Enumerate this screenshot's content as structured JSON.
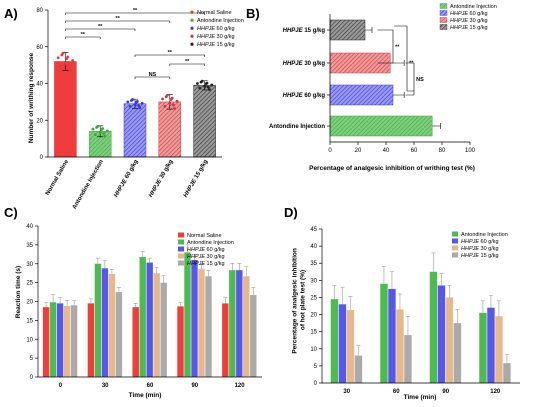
{
  "colors": {
    "normal_saline": "#f03c3c",
    "antondine": "#4dbb4d",
    "hhpje_60": "#5757ee",
    "hhpje_30": "#e6b98a",
    "hhpje_15": "#aaaaaa",
    "a_ns": "#e83a3a",
    "a_ant": "#3ea63e",
    "a_60": "#3a3ad0",
    "a_30": "#c73a45",
    "a_15": "#222222"
  },
  "chart_data": [
    {
      "panel": "A)",
      "type": "bar",
      "ylabel": "Number of writhing response",
      "ylim": [
        0,
        80
      ],
      "yticks": [
        0,
        20,
        40,
        60,
        80
      ],
      "categories": [
        "Normal Saline",
        "Antondine Injection",
        "HHPJE 60 g/kg",
        "HHPJE 30 g/kg",
        "HHPJE 15 g/kg"
      ],
      "values": [
        52,
        14,
        29,
        30,
        39
      ],
      "errors": [
        5,
        3,
        2.5,
        4,
        2.5
      ],
      "legend": [
        "Normal Saline",
        "Antondine Injection",
        "HHPJE 60 g/kg",
        "HHPJE 30 g/kg",
        "HHPJE 15 g/kg"
      ],
      "legend_position": "top-right",
      "significance": [
        "**",
        "**",
        "**",
        "**",
        "NS",
        "**",
        "**"
      ]
    },
    {
      "panel": "B)",
      "type": "bar",
      "orientation": "horizontal",
      "xlabel": "Percentage of analgesic inhibition of writhing test (%)",
      "xlim": [
        0,
        100
      ],
      "xticks": [
        0,
        20,
        40,
        60,
        80,
        100
      ],
      "categories": [
        "HHPJE 15 g/kg",
        "HHPJE 30 g/kg",
        "HHPJE 60 g/kg",
        "Antondine Injection"
      ],
      "values": [
        25,
        43,
        45,
        73
      ],
      "errors": [
        5,
        10,
        8,
        6
      ],
      "legend": [
        "Antondine Injection",
        "HHPJE 60 g/kg",
        "HHPJE 30 g/kg",
        "HHPJE 15 g/kg"
      ],
      "legend_position": "top-right",
      "significance": [
        "**",
        "**",
        "NS"
      ]
    },
    {
      "panel": "C)",
      "type": "bar",
      "xlabel": "Time (min)",
      "ylabel": "Reaction time (s)",
      "ylim": [
        0,
        40
      ],
      "yticks": [
        0,
        5,
        10,
        15,
        20,
        25,
        30,
        35,
        40
      ],
      "categories": [
        "0",
        "30",
        "60",
        "90",
        "120"
      ],
      "series": [
        {
          "name": "Normal Saline",
          "values": [
            18.5,
            19.5,
            18.5,
            18.7,
            19.5
          ],
          "errors": [
            1.2,
            1.2,
            1.0,
            1.0,
            1.5
          ]
        },
        {
          "name": "Antondine Injection",
          "values": [
            19.8,
            30.0,
            31.8,
            33.0,
            28.3
          ],
          "errors": [
            2.0,
            1.5,
            1.5,
            2.0,
            1.8
          ]
        },
        {
          "name": "HHPJE 60 g/kg",
          "values": [
            19.5,
            28.8,
            30.3,
            31.0,
            28.3
          ],
          "errors": [
            1.5,
            2.0,
            1.2,
            1.5,
            1.8
          ]
        },
        {
          "name": "HHPJE 30 g/kg",
          "values": [
            18.8,
            27.3,
            27.5,
            28.7,
            26.7
          ],
          "errors": [
            1.5,
            1.2,
            1.5,
            1.2,
            2.5
          ]
        },
        {
          "name": "HHPJE 15 g/kg",
          "values": [
            19.0,
            22.5,
            25.0,
            26.7,
            21.7
          ],
          "errors": [
            1.2,
            1.2,
            1.8,
            1.5,
            2.0
          ]
        }
      ],
      "legend_position": "top-right"
    },
    {
      "panel": "D)",
      "type": "bar",
      "xlabel": "Time (min)",
      "ylabel": "Percentage of analgesic inhibition of hot plate test (%)",
      "ylim": [
        0,
        45
      ],
      "yticks": [
        0,
        5,
        10,
        15,
        20,
        25,
        30,
        35,
        40,
        45
      ],
      "categories": [
        "30",
        "60",
        "90",
        "120"
      ],
      "series": [
        {
          "name": "Antondine Injection",
          "values": [
            24.5,
            29.0,
            32.5,
            20.5
          ],
          "errors": [
            4.0,
            5.0,
            5.5,
            3.5
          ]
        },
        {
          "name": "HHPJE 60 g/kg",
          "values": [
            23.0,
            27.5,
            28.5,
            22.0
          ],
          "errors": [
            5.0,
            5.0,
            3.5,
            3.5
          ]
        },
        {
          "name": "HHPJE 30 g/kg",
          "values": [
            21.3,
            21.5,
            25.0,
            19.5
          ],
          "errors": [
            4.0,
            4.5,
            3.5,
            4.5
          ]
        },
        {
          "name": "HHPJE 15 g/kg",
          "values": [
            8.0,
            14.0,
            17.5,
            5.8
          ],
          "errors": [
            3.0,
            5.5,
            4.0,
            2.5
          ]
        }
      ],
      "legend_position": "top-right"
    }
  ]
}
